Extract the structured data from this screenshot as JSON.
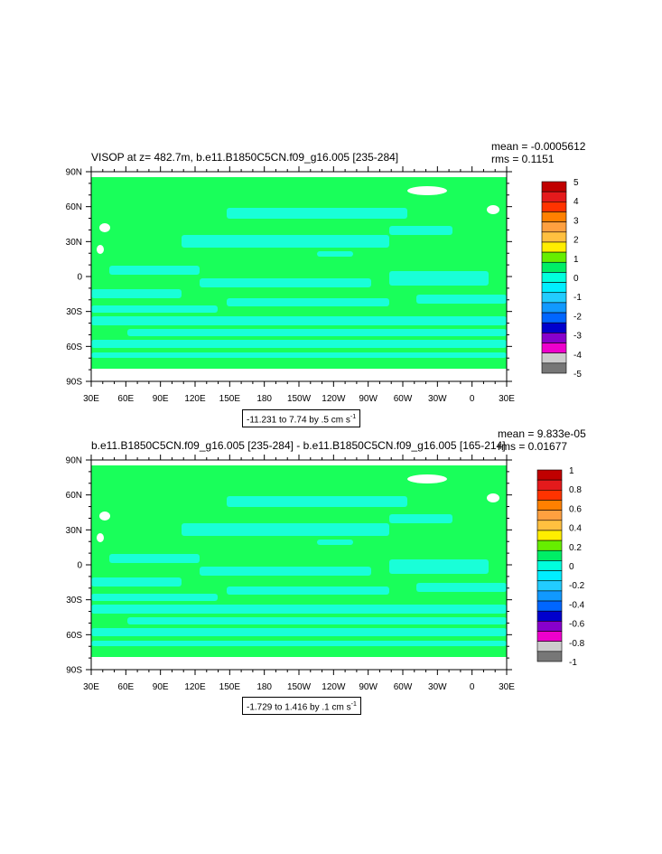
{
  "chart_data": [
    {
      "type": "heatmap",
      "subtype": "filled-contour-map",
      "title": "VISOP at z= 482.7m, b.e11.B1850C5CN.f09_g16.005 [235-284]",
      "stats": {
        "mean": "mean = -0.0005612",
        "rms": "rms = 0.1151"
      },
      "range_label": "-11.231 to 7.74 by .5 cm s",
      "range_unit_sup": "-1",
      "x_ticks": [
        "30E",
        "60E",
        "90E",
        "120E",
        "150E",
        "180",
        "150W",
        "120W",
        "90W",
        "60W",
        "30W",
        "0",
        "30E"
      ],
      "y_ticks": [
        "90N",
        "60N",
        "30N",
        "0",
        "30S",
        "60S",
        "90S"
      ],
      "colorbar": {
        "labels": [
          "5",
          "4",
          "3",
          "2",
          "1",
          "0",
          "-1",
          "-2",
          "-3",
          "-4",
          "-5"
        ],
        "colors": [
          "#c00000",
          "#e41a1c",
          "#ff3300",
          "#ff8000",
          "#ffa040",
          "#ffc040",
          "#ffee00",
          "#66ee00",
          "#00ee66",
          "#00ffdd",
          "#00eeff",
          "#22ccff",
          "#1199ff",
          "#0066ff",
          "#0000cc",
          "#8800cc",
          "#ee00cc",
          "#cccccc",
          "#777777"
        ]
      },
      "field": {
        "dominant_level": "0 to 0.5",
        "secondary_level": "-0.5 to 0"
      }
    },
    {
      "type": "heatmap",
      "subtype": "filled-contour-map",
      "title": "b.e11.B1850C5CN.f09_g16.005 [235-284] - b.e11.B1850C5CN.f09_g16.005 [165-214]",
      "stats": {
        "mean": "mean = 9.833e-05",
        "rms": "rms = 0.01677"
      },
      "range_label": "-1.729 to 1.416 by .1 cm s",
      "range_unit_sup": "-1",
      "x_ticks": [
        "30E",
        "60E",
        "90E",
        "120E",
        "150E",
        "180",
        "150W",
        "120W",
        "90W",
        "60W",
        "30W",
        "0",
        "30E"
      ],
      "y_ticks": [
        "90N",
        "60N",
        "30N",
        "0",
        "30S",
        "60S",
        "90S"
      ],
      "colorbar": {
        "labels": [
          "1",
          "0.8",
          "0.6",
          "0.4",
          "0.2",
          "0",
          "-0.2",
          "-0.4",
          "-0.6",
          "-0.8",
          "-1"
        ],
        "colors": [
          "#c00000",
          "#e41a1c",
          "#ff3300",
          "#ff8000",
          "#ffa040",
          "#ffc040",
          "#ffee00",
          "#66ee00",
          "#00ee66",
          "#00ffdd",
          "#00eeff",
          "#22ccff",
          "#1199ff",
          "#0066ff",
          "#0000cc",
          "#8800cc",
          "#ee00cc",
          "#cccccc",
          "#777777"
        ]
      },
      "field": {
        "dominant_level": "0 to 0.1",
        "secondary_level": "-0.1 to 0"
      }
    }
  ],
  "colors": {
    "field_positive": "#19ff5a",
    "field_negative": "#19ffd8",
    "land": "#ffffff"
  }
}
